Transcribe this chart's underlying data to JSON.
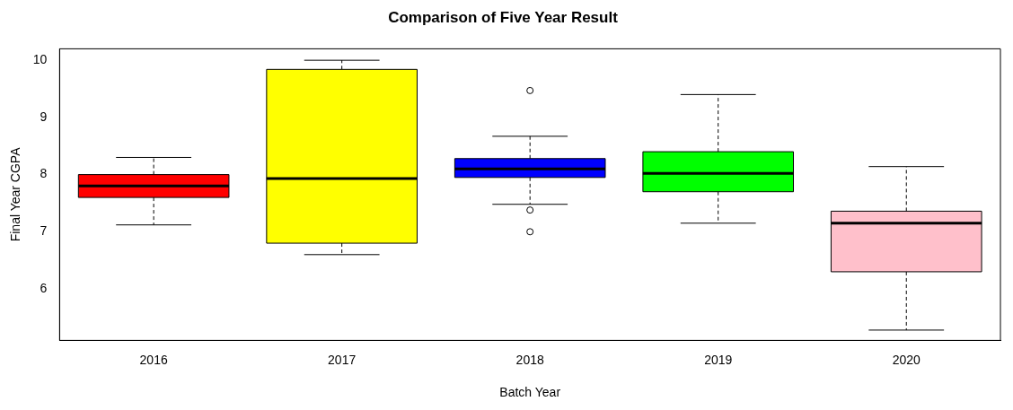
{
  "chart_data": {
    "type": "box",
    "title": "Comparison of Five Year Result",
    "xlabel": "Batch Year",
    "ylabel": "Final Year CGPA",
    "categories": [
      "2016",
      "2017",
      "2018",
      "2019",
      "2020"
    ],
    "colors": [
      "#ff0000",
      "#ffff00",
      "#0000ff",
      "#00ff00",
      "#ffc0cb"
    ],
    "boxes": [
      {
        "low": 7.12,
        "q1": 7.6,
        "median": 7.8,
        "q3": 8.0,
        "high": 8.3
      },
      {
        "low": 6.6,
        "q1": 6.8,
        "median": 7.93,
        "q3": 9.84,
        "high": 10.0
      },
      {
        "low": 7.48,
        "q1": 7.95,
        "median": 8.1,
        "q3": 8.28,
        "high": 8.67,
        "outliers": [
          9.47,
          7.38,
          7.0
        ]
      },
      {
        "low": 7.15,
        "q1": 7.7,
        "median": 8.02,
        "q3": 8.4,
        "high": 9.4
      },
      {
        "low": 5.28,
        "q1": 6.3,
        "median": 7.15,
        "q3": 7.36,
        "high": 8.14
      }
    ],
    "ylim": [
      5.1,
      10.2
    ],
    "yticks": [
      6,
      7,
      8,
      9,
      10
    ],
    "grid": false,
    "legend": false
  }
}
